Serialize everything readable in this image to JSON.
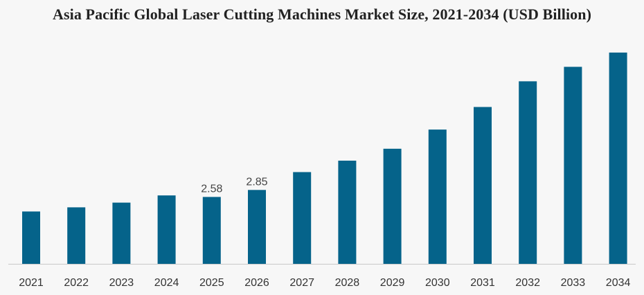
{
  "chart_data": {
    "type": "bar",
    "title": "Asia Pacific Global Laser Cutting Machines Market Size, 2021-2034 (USD Billion)",
    "xlabel": "",
    "ylabel": "",
    "categories": [
      "2021",
      "2022",
      "2023",
      "2024",
      "2025",
      "2026",
      "2027",
      "2028",
      "2029",
      "2030",
      "2031",
      "2032",
      "2033",
      "2034"
    ],
    "values": [
      2.02,
      2.18,
      2.36,
      2.64,
      2.58,
      2.85,
      3.54,
      3.98,
      4.44,
      5.18,
      6.05,
      7.04,
      7.6,
      8.15
    ],
    "data_labels": [
      null,
      null,
      null,
      null,
      "2.58",
      "2.85",
      null,
      null,
      null,
      null,
      null,
      null,
      null,
      null
    ],
    "ylim": [
      0,
      8.2
    ],
    "grid": false,
    "legend": "none",
    "bar_color": "#05638a",
    "axis_color": "#c8c8c8"
  }
}
